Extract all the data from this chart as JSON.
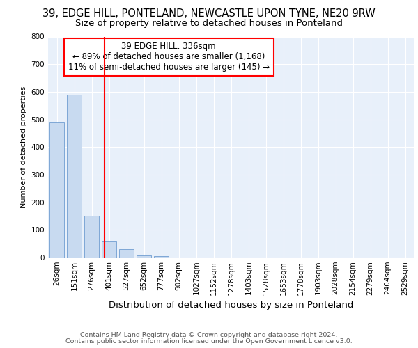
{
  "title1": "39, EDGE HILL, PONTELAND, NEWCASTLE UPON TYNE, NE20 9RW",
  "title2": "Size of property relative to detached houses in Ponteland",
  "xlabel": "Distribution of detached houses by size in Ponteland",
  "ylabel": "Number of detached properties",
  "categories": [
    "26sqm",
    "151sqm",
    "276sqm",
    "401sqm",
    "527sqm",
    "652sqm",
    "777sqm",
    "902sqm",
    "1027sqm",
    "1152sqm",
    "1278sqm",
    "1403sqm",
    "1528sqm",
    "1653sqm",
    "1778sqm",
    "1903sqm",
    "2028sqm",
    "2154sqm",
    "2279sqm",
    "2404sqm",
    "2529sqm"
  ],
  "values": [
    490,
    590,
    150,
    60,
    30,
    8,
    5,
    0,
    0,
    0,
    0,
    0,
    0,
    0,
    0,
    0,
    0,
    0,
    0,
    0,
    0
  ],
  "bar_color": "#c8daf0",
  "bar_edge_color": "#5b8fc9",
  "red_line_x": 2.72,
  "property_line": "39 EDGE HILL: 336sqm",
  "annotation_line1": "← 89% of detached houses are smaller (1,168)",
  "annotation_line2": "11% of semi-detached houses are larger (145) →",
  "ylim": [
    0,
    800
  ],
  "yticks": [
    0,
    100,
    200,
    300,
    400,
    500,
    600,
    700,
    800
  ],
  "footer1": "Contains HM Land Registry data © Crown copyright and database right 2024.",
  "footer2": "Contains public sector information licensed under the Open Government Licence v3.0.",
  "fig_bg_color": "#ffffff",
  "ax_bg_color": "#e8f0fa",
  "grid_color": "#ffffff",
  "title1_fontsize": 10.5,
  "title2_fontsize": 9.5,
  "xlabel_fontsize": 9.5,
  "ylabel_fontsize": 8,
  "tick_fontsize": 7.5,
  "footer_fontsize": 6.8,
  "annot_fontsize": 8.5
}
